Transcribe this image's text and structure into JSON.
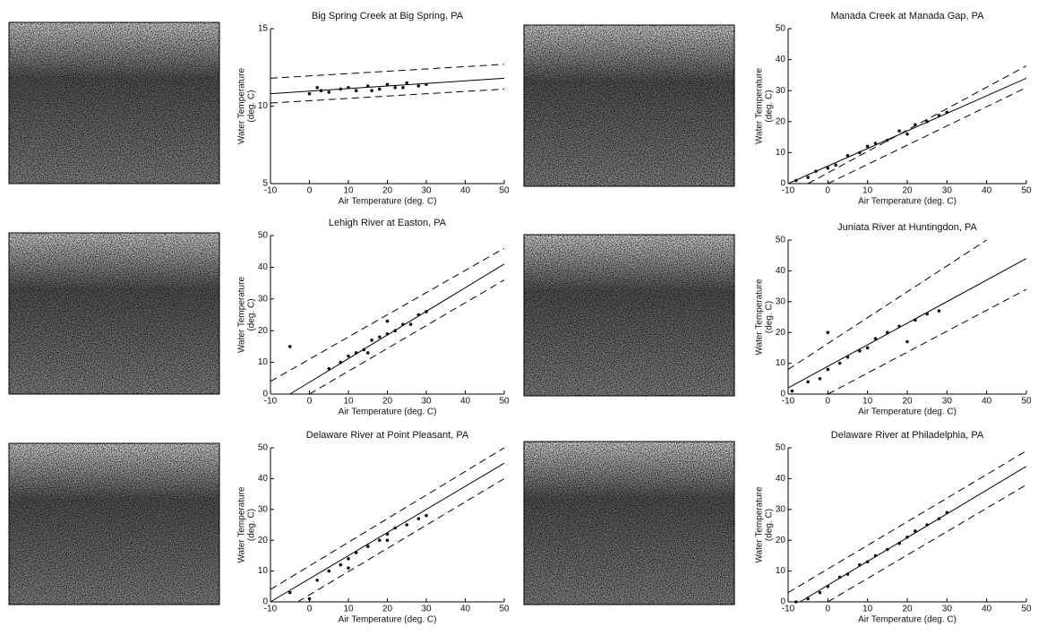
{
  "chart_data": [
    {
      "type": "scatter",
      "title": "Big Spring Creek at Big Spring, PA",
      "x_label": "Air Temperature (deg. C)",
      "y_label": [
        "Water Temperature",
        "(deg. C)"
      ],
      "xlim": [
        -10,
        50
      ],
      "ylim": [
        5,
        15
      ],
      "xticks": [
        -10,
        0,
        10,
        20,
        30,
        40,
        50
      ],
      "yticks": [
        5,
        10,
        15
      ],
      "color": "#111111",
      "x": [
        0,
        3,
        5,
        8,
        10,
        12,
        15,
        18,
        20,
        22,
        25,
        28,
        30,
        2,
        16,
        24
      ],
      "values": [
        10.8,
        11.0,
        10.9,
        11.1,
        11.2,
        11.0,
        11.3,
        11.1,
        11.4,
        11.2,
        11.5,
        11.3,
        11.4,
        11.2,
        11.0,
        11.2
      ],
      "lines": [
        {
          "style": "solid",
          "x": [
            -10,
            50
          ],
          "values": [
            10.8,
            11.8
          ]
        },
        {
          "style": "dashed",
          "x": [
            -10,
            50
          ],
          "values": [
            11.8,
            12.7
          ]
        },
        {
          "style": "dashed",
          "x": [
            -10,
            50
          ],
          "values": [
            10.2,
            11.1
          ]
        }
      ]
    },
    {
      "type": "scatter",
      "title": "Manada Creek at Manada Gap, PA",
      "x_label": "Air Temperature (deg. C)",
      "y_label": [
        "Water Temperature",
        "(deg. C)"
      ],
      "xlim": [
        -10,
        50
      ],
      "ylim": [
        0,
        50
      ],
      "xticks": [
        -10,
        0,
        10,
        20,
        30,
        40,
        50
      ],
      "yticks": [
        0,
        10,
        20,
        30,
        40,
        50
      ],
      "color": "#111111",
      "x": [
        -8,
        -5,
        -3,
        0,
        2,
        5,
        8,
        10,
        12,
        15,
        18,
        20,
        22,
        25,
        28,
        30
      ],
      "values": [
        1,
        2,
        4,
        5,
        6,
        9,
        10,
        12,
        13,
        14,
        17,
        16,
        19,
        20,
        22,
        23
      ],
      "lines": [
        {
          "style": "solid",
          "x": [
            -10,
            50
          ],
          "values": [
            0,
            34
          ]
        },
        {
          "style": "dashed",
          "x": [
            -5,
            50
          ],
          "values": [
            0,
            38
          ]
        },
        {
          "style": "dashed",
          "x": [
            0,
            50
          ],
          "values": [
            0,
            31
          ]
        }
      ]
    },
    {
      "type": "scatter",
      "title": "Lehigh River at Easton, PA",
      "x_label": "Air Temperature (deg. C)",
      "y_label": [
        "Water Temperature",
        "(deg. C)"
      ],
      "xlim": [
        -10,
        50
      ],
      "ylim": [
        0,
        50
      ],
      "xticks": [
        -10,
        0,
        10,
        20,
        30,
        40,
        50
      ],
      "yticks": [
        0,
        10,
        20,
        30,
        40,
        50
      ],
      "color": "#111111",
      "x": [
        -5,
        5,
        8,
        10,
        12,
        14,
        16,
        18,
        20,
        22,
        24,
        26,
        28,
        30,
        15,
        20
      ],
      "values": [
        15,
        8,
        10,
        12,
        13,
        14,
        17,
        18,
        19,
        20,
        22,
        22,
        25,
        26,
        13,
        23
      ],
      "lines": [
        {
          "style": "solid",
          "x": [
            -5,
            50
          ],
          "values": [
            0,
            41
          ]
        },
        {
          "style": "dashed",
          "x": [
            -10,
            50
          ],
          "values": [
            4,
            46
          ]
        },
        {
          "style": "dashed",
          "x": [
            0,
            50
          ],
          "values": [
            0,
            36
          ]
        }
      ]
    },
    {
      "type": "scatter",
      "title": "Juniata River at Huntingdon, PA",
      "x_label": "Air Temperature (deg. C)",
      "y_label": [
        "Water Temperature",
        "(deg. C)"
      ],
      "xlim": [
        -10,
        50
      ],
      "ylim": [
        0,
        50
      ],
      "xticks": [
        -10,
        0,
        10,
        20,
        30,
        40,
        50
      ],
      "yticks": [
        0,
        10,
        20,
        30,
        40,
        50
      ],
      "color": "#111111",
      "x": [
        -9,
        -5,
        -2,
        0,
        0,
        3,
        5,
        8,
        10,
        12,
        15,
        18,
        20,
        22,
        25,
        28
      ],
      "values": [
        1,
        4,
        5,
        20,
        8,
        10,
        12,
        14,
        15,
        18,
        20,
        22,
        17,
        24,
        26,
        27
      ],
      "lines": [
        {
          "style": "solid",
          "x": [
            -10,
            50
          ],
          "values": [
            2,
            44
          ]
        },
        {
          "style": "dashed",
          "x": [
            -10,
            40
          ],
          "values": [
            8,
            50
          ]
        },
        {
          "style": "dashed",
          "x": [
            0,
            50
          ],
          "values": [
            0,
            34
          ]
        }
      ]
    },
    {
      "type": "scatter",
      "title": "Delaware River at Point Pleasant, PA",
      "x_label": "Air Temperature (deg. C)",
      "y_label": [
        "Water Temperature",
        "(deg. C)"
      ],
      "xlim": [
        -10,
        50
      ],
      "ylim": [
        0,
        50
      ],
      "xticks": [
        -10,
        0,
        10,
        20,
        30,
        40,
        50
      ],
      "yticks": [
        0,
        10,
        20,
        30,
        40,
        50
      ],
      "color": "#111111",
      "x": [
        -5,
        0,
        2,
        5,
        8,
        10,
        12,
        15,
        18,
        20,
        22,
        25,
        28,
        30,
        10,
        20
      ],
      "values": [
        3,
        1,
        7,
        10,
        12,
        14,
        16,
        18,
        20,
        22,
        24,
        25,
        27,
        28,
        11,
        20
      ],
      "lines": [
        {
          "style": "solid",
          "x": [
            -10,
            50
          ],
          "values": [
            0,
            45
          ]
        },
        {
          "style": "dashed",
          "x": [
            -10,
            50
          ],
          "values": [
            4,
            50
          ]
        },
        {
          "style": "dashed",
          "x": [
            -3,
            50
          ],
          "values": [
            0,
            40
          ]
        }
      ]
    },
    {
      "type": "scatter",
      "title": "Delaware River at Philadelphia, PA",
      "x_label": "Air Temperature (deg. C)",
      "y_label": [
        "Water Temperature",
        "(deg. C)"
      ],
      "xlim": [
        -10,
        50
      ],
      "ylim": [
        0,
        50
      ],
      "xticks": [
        -10,
        0,
        10,
        20,
        30,
        40,
        50
      ],
      "yticks": [
        0,
        10,
        20,
        30,
        40,
        50
      ],
      "color": "#111111",
      "x": [
        -8,
        -5,
        -2,
        0,
        3,
        5,
        8,
        10,
        12,
        15,
        18,
        20,
        22,
        25,
        28,
        30
      ],
      "values": [
        0,
        1,
        3,
        5,
        8,
        9,
        12,
        13,
        15,
        17,
        19,
        21,
        23,
        25,
        27,
        29
      ],
      "lines": [
        {
          "style": "solid",
          "x": [
            -7,
            50
          ],
          "values": [
            0,
            44
          ]
        },
        {
          "style": "dashed",
          "x": [
            -10,
            50
          ],
          "values": [
            3,
            49
          ]
        },
        {
          "style": "dashed",
          "x": [
            0,
            50
          ],
          "values": [
            0,
            38
          ]
        }
      ]
    }
  ]
}
